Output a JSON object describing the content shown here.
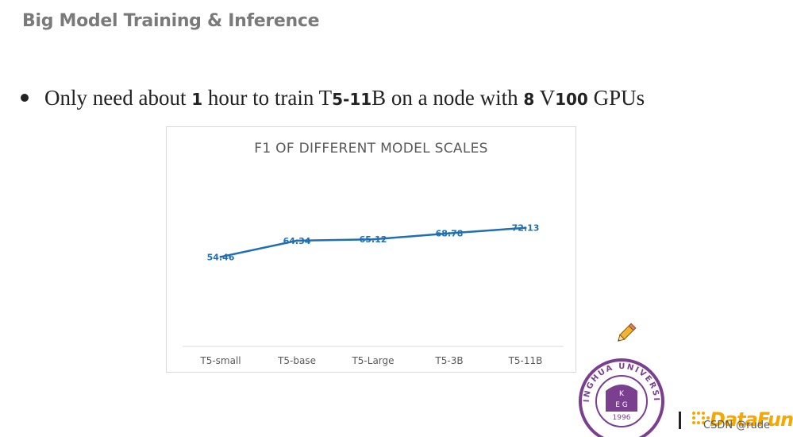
{
  "slide": {
    "title": "Big Model Training & Inference",
    "bullet": {
      "t1": "Only need about ",
      "n1": "1",
      "t2": " hour to train T",
      "n2": "5-11",
      "t3": "B on a node with ",
      "n3": "8",
      "t4": " V",
      "n4": "100",
      "t5": " GPUs"
    }
  },
  "chart_data": {
    "type": "line",
    "title": "F1 OF DIFFERENT MODEL SCALES",
    "categories": [
      "T5-small",
      "T5-base",
      "T5-Large",
      "T5-3B",
      "T5-11B"
    ],
    "series": [
      {
        "name": "F1",
        "values": [
          54.46,
          64.34,
          65.12,
          68.78,
          72.13
        ],
        "labels": [
          "54.46",
          "64.34",
          "65.12",
          "68.78",
          "72.13"
        ]
      }
    ],
    "ylim": [
      0,
      115
    ],
    "grid": false,
    "xlabel": "",
    "ylabel": "",
    "line_color": "#1f6fb2"
  },
  "logos": {
    "seal_text": "TSINGHUA UNIVERSITY",
    "seal_year": "1996",
    "brand": "DataFun.",
    "watermark": "CSDN @rude"
  }
}
